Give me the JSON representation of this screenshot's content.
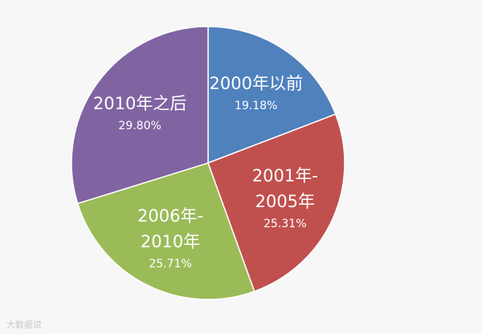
{
  "chart_data": {
    "type": "pie",
    "categories": [
      "2000年以前",
      "2001年-\n2005年",
      "2006年-\n2010年",
      "2010年之后"
    ],
    "values": [
      19.18,
      25.31,
      25.71,
      29.8
    ],
    "value_labels": [
      "19.18%",
      "25.31%",
      "25.71%",
      "29.80%"
    ],
    "colors": [
      "#4f81bd",
      "#c0504d",
      "#9bbb59",
      "#8064a2"
    ]
  },
  "watermark": "大数据说"
}
